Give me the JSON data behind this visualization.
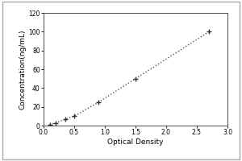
{
  "x_data": [
    0.1,
    0.2,
    0.35,
    0.5,
    0.9,
    1.5,
    2.7
  ],
  "y_data": [
    1.0,
    3.0,
    6.5,
    10.0,
    25.0,
    50.0,
    100.0
  ],
  "xlabel": "Optical Density",
  "ylabel": "Concentration(ng/mL)",
  "xlim": [
    0,
    3
  ],
  "ylim": [
    0,
    120
  ],
  "xticks": [
    0,
    0.5,
    1,
    1.5,
    2,
    2.5,
    3
  ],
  "yticks": [
    0,
    20,
    40,
    60,
    80,
    100,
    120
  ],
  "line_color": "#555555",
  "marker_color": "#333333",
  "background_color": "#ffffff",
  "outer_border_color": "#aaaaaa",
  "xlabel_fontsize": 6.5,
  "ylabel_fontsize": 6.5,
  "tick_fontsize": 5.5
}
